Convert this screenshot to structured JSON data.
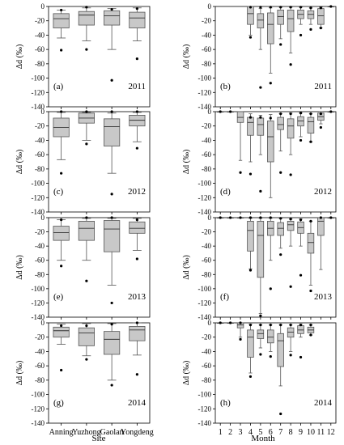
{
  "figure": {
    "x_labels": {
      "left": "Site",
      "right": "Month"
    },
    "y_label": "Δd (‰)",
    "left_categories": [
      "Anning",
      "Yuzhong",
      "Gaolan",
      "Yongdeng"
    ],
    "right_categories": [
      "1",
      "2",
      "3",
      "4",
      "5",
      "6",
      "7",
      "8",
      "9",
      "10",
      "11",
      "12"
    ],
    "y_ticks": [
      "0",
      "-20",
      "-40",
      "-60",
      "-80",
      "-100",
      "-120",
      "-140"
    ]
  },
  "chart_data": [
    {
      "id": "a",
      "type": "boxplot",
      "label": "(a)",
      "year": "2011",
      "xlabel": "Site",
      "ylabel": "Δd (‰)",
      "ylim": [
        -140,
        0
      ],
      "categories": [
        "Anning",
        "Yuzhong",
        "Gaolan",
        "Yongdeng"
      ],
      "boxes": [
        {
          "q1": -30,
          "median": -17,
          "q3": -10,
          "low": -44,
          "high": -5,
          "outliers": [
            -61,
            -5
          ]
        },
        {
          "q1": -26,
          "median": -12,
          "q3": -7,
          "low": -48,
          "high": -2,
          "outliers": [
            -60,
            -1
          ]
        },
        {
          "q1": -26,
          "median": -13,
          "q3": -6,
          "low": -60,
          "high": -3,
          "outliers": [
            -103,
            -4
          ]
        },
        {
          "q1": -30,
          "median": -16,
          "q3": -8,
          "low": -48,
          "high": -2,
          "outliers": [
            -73,
            -3
          ]
        }
      ]
    },
    {
      "id": "b",
      "type": "boxplot",
      "label": "(b)",
      "year": "2011",
      "xlabel": "Month",
      "ylabel": "Δd (‰)",
      "ylim": [
        -140,
        0
      ],
      "categories": [
        "1",
        "2",
        "3",
        "4",
        "5",
        "6",
        "7",
        "8",
        "9",
        "10",
        "11",
        "12"
      ],
      "boxes": [
        null,
        null,
        null,
        {
          "q1": -25,
          "median": -10,
          "q3": 0,
          "low": -40,
          "high": 0,
          "outliers": [
            -43,
            -1
          ]
        },
        {
          "q1": -30,
          "median": -19,
          "q3": -10,
          "low": -60,
          "high": -3,
          "outliers": [
            -113,
            -1
          ]
        },
        {
          "q1": -52,
          "median": -25,
          "q3": -9,
          "low": -93,
          "high": -2,
          "outliers": [
            -107,
            -1
          ]
        },
        {
          "q1": -25,
          "median": -14,
          "q3": -5,
          "low": -45,
          "high": -1,
          "outliers": [
            -53,
            -1
          ]
        },
        {
          "q1": -35,
          "median": -17,
          "q3": -5,
          "low": -65,
          "high": -1,
          "outliers": [
            -81,
            -1
          ]
        },
        {
          "q1": -17,
          "median": -11,
          "q3": -5,
          "low": -25,
          "high": -1,
          "outliers": [
            -40,
            -1
          ]
        },
        {
          "q1": -17,
          "median": -11,
          "q3": -6,
          "low": -25,
          "high": -2,
          "outliers": [
            -32,
            -2
          ]
        },
        {
          "q1": -25,
          "median": -13,
          "q3": -3,
          "low": -30,
          "high": -1,
          "outliers": [
            -30,
            -2
          ]
        },
        {
          "q1": 0,
          "median": 0,
          "q3": 0,
          "low": 0,
          "high": 0,
          "outliers": [
            0
          ]
        }
      ]
    },
    {
      "id": "c",
      "type": "boxplot",
      "label": "(c)",
      "year": "2012",
      "xlabel": "Site",
      "ylabel": "Δd (‰)",
      "ylim": [
        -140,
        0
      ],
      "categories": [
        "Anning",
        "Yuzhong",
        "Gaolan",
        "Yongdeng"
      ],
      "boxes": [
        {
          "q1": -35,
          "median": -22,
          "q3": -9,
          "low": -67,
          "high": -1,
          "outliers": [
            -86,
            0
          ]
        },
        {
          "q1": -16,
          "median": -9,
          "q3": -2,
          "low": -40,
          "high": -1,
          "outliers": [
            -45,
            0
          ]
        },
        {
          "q1": -48,
          "median": -21,
          "q3": -10,
          "low": -86,
          "high": -2,
          "outliers": [
            -115,
            0
          ]
        },
        {
          "q1": -20,
          "median": -12,
          "q3": -5,
          "low": -42,
          "high": -1,
          "outliers": [
            -51,
            0
          ]
        }
      ]
    },
    {
      "id": "d",
      "type": "boxplot",
      "label": "(d)",
      "year": "2012",
      "xlabel": "Month",
      "ylabel": "Δd (‰)",
      "ylim": [
        -140,
        0
      ],
      "categories": [
        "1",
        "2",
        "3",
        "4",
        "5",
        "6",
        "7",
        "8",
        "9",
        "10",
        "11",
        "12"
      ],
      "boxes": [
        {
          "q1": 0,
          "median": 0,
          "q3": 0,
          "low": 0,
          "high": 0,
          "outliers": [
            0
          ]
        },
        {
          "q1": 0,
          "median": 0,
          "q3": 0,
          "low": 0,
          "high": 0,
          "outliers": [
            0
          ]
        },
        {
          "q1": -15,
          "median": -8,
          "q3": 0,
          "low": -68,
          "high": 0,
          "outliers": [
            -85
          ]
        },
        {
          "q1": -33,
          "median": -15,
          "q3": -8,
          "low": -70,
          "high": -3,
          "outliers": [
            -87,
            -8
          ]
        },
        {
          "q1": -33,
          "median": -18,
          "q3": -9,
          "low": -60,
          "high": -5,
          "outliers": [
            -111,
            -8
          ]
        },
        {
          "q1": -70,
          "median": -35,
          "q3": -13,
          "low": -120,
          "high": -4,
          "outliers": [
            -9
          ]
        },
        {
          "q1": -25,
          "median": -18,
          "q3": -8,
          "low": -55,
          "high": -3,
          "outliers": [
            -85,
            -3
          ]
        },
        {
          "q1": -37,
          "median": -20,
          "q3": -10,
          "low": -60,
          "high": -2,
          "outliers": [
            -88,
            -3
          ]
        },
        {
          "q1": -20,
          "median": -13,
          "q3": -7,
          "low": -35,
          "high": -2,
          "outliers": [
            -40,
            -2
          ]
        },
        {
          "q1": -30,
          "median": -14,
          "q3": -8,
          "low": -42,
          "high": -3,
          "outliers": [
            -42,
            -3
          ]
        },
        {
          "q1": -12,
          "median": -7,
          "q3": -2,
          "low": -17,
          "high": 0,
          "outliers": [
            -22,
            -3
          ]
        },
        {
          "q1": 0,
          "median": 0,
          "q3": 0,
          "low": 0,
          "high": 0,
          "outliers": [
            0
          ]
        }
      ]
    },
    {
      "id": "e",
      "type": "boxplot",
      "label": "(e)",
      "year": "2013",
      "xlabel": "Site",
      "ylabel": "Δd (‰)",
      "ylim": [
        -140,
        0
      ],
      "categories": [
        "Anning",
        "Yuzhong",
        "Gaolan",
        "Yongdeng"
      ],
      "boxes": [
        {
          "q1": -32,
          "median": -21,
          "q3": -12,
          "low": -60,
          "high": -3,
          "outliers": [
            -68,
            -3
          ]
        },
        {
          "q1": -32,
          "median": -15,
          "q3": -5,
          "low": -60,
          "high": -1,
          "outliers": [
            -89,
            0
          ]
        },
        {
          "q1": -48,
          "median": -16,
          "q3": -4,
          "low": -95,
          "high": -1,
          "outliers": [
            -120,
            0
          ]
        },
        {
          "q1": -22,
          "median": -15,
          "q3": -6,
          "low": -46,
          "high": -1,
          "outliers": [
            -58,
            -3
          ]
        }
      ]
    },
    {
      "id": "f",
      "type": "boxplot",
      "label": "(f)",
      "year": "2013",
      "xlabel": "Month",
      "ylabel": "Δd (‰)",
      "ylim": [
        -140,
        0
      ],
      "categories": [
        "1",
        "2",
        "3",
        "4",
        "5",
        "6",
        "7",
        "8",
        "9",
        "10",
        "11",
        "12"
      ],
      "boxes": [
        {
          "q1": 0,
          "median": 0,
          "q3": 0,
          "low": 0,
          "high": 0,
          "outliers": [
            0
          ]
        },
        {
          "q1": 0,
          "median": 0,
          "q3": 0,
          "low": 0,
          "high": 0,
          "outliers": [
            0
          ]
        },
        {
          "q1": 0,
          "median": 0,
          "q3": 0,
          "low": 0,
          "high": 0,
          "outliers": [
            0
          ]
        },
        {
          "q1": -47,
          "median": -18,
          "q3": -5,
          "low": -72,
          "high": -1,
          "outliers": [
            -74,
            0
          ]
        },
        {
          "q1": -84,
          "median": -25,
          "q3": -5,
          "low": -135,
          "high": -1,
          "outliers": [
            -138,
            0
          ]
        },
        {
          "q1": -25,
          "median": -15,
          "q3": -5,
          "low": -60,
          "high": -1,
          "outliers": [
            -100,
            0
          ]
        },
        {
          "q1": -25,
          "median": -15,
          "q3": -7,
          "low": -43,
          "high": -1,
          "outliers": [
            -52,
            -1
          ]
        },
        {
          "q1": -18,
          "median": -10,
          "q3": -5,
          "low": -40,
          "high": -2,
          "outliers": [
            -97,
            -2
          ]
        },
        {
          "q1": -22,
          "median": -14,
          "q3": -6,
          "low": -40,
          "high": -2,
          "outliers": [
            -81,
            -3
          ]
        },
        {
          "q1": -50,
          "median": -35,
          "q3": -22,
          "low": -95,
          "high": -5,
          "outliers": [
            -103,
            -5
          ]
        },
        {
          "q1": -25,
          "median": -5,
          "q3": 0,
          "low": -73,
          "high": 0,
          "outliers": [
            0
          ]
        },
        {
          "q1": 0,
          "median": 0,
          "q3": 0,
          "low": 0,
          "high": 0,
          "outliers": [
            0
          ]
        }
      ]
    },
    {
      "id": "g",
      "type": "boxplot",
      "label": "(g)",
      "year": "2014",
      "xlabel": "Site",
      "ylabel": "Δd (‰)",
      "ylim": [
        -140,
        0
      ],
      "categories": [
        "Anning",
        "Yuzhong",
        "Gaolan",
        "Yongdeng"
      ],
      "boxes": [
        {
          "q1": -20,
          "median": -11,
          "q3": -6,
          "low": -30,
          "high": -2,
          "outliers": [
            -66,
            -4
          ]
        },
        {
          "q1": -32,
          "median": -14,
          "q3": -7,
          "low": -46,
          "high": -1,
          "outliers": [
            -51,
            -4
          ]
        },
        {
          "q1": -44,
          "median": -23,
          "q3": -12,
          "low": -80,
          "high": -1,
          "outliers": [
            -87,
            -2
          ]
        },
        {
          "q1": -25,
          "median": -10,
          "q3": -5,
          "low": -45,
          "high": 0,
          "outliers": [
            -72,
            0
          ]
        }
      ]
    },
    {
      "id": "h",
      "type": "boxplot",
      "label": "(h)",
      "year": "2014",
      "xlabel": "Month",
      "ylabel": "Δd (‰)",
      "ylim": [
        -140,
        0
      ],
      "categories": [
        "1",
        "2",
        "3",
        "4",
        "5",
        "6",
        "7",
        "8",
        "9",
        "10",
        "11",
        "12"
      ],
      "boxes": [
        {
          "q1": 0,
          "median": 0,
          "q3": 0,
          "low": 0,
          "high": 0,
          "outliers": [
            0
          ]
        },
        {
          "q1": 0,
          "median": 0,
          "q3": 0,
          "low": 0,
          "high": 0,
          "outliers": [
            0
          ]
        },
        {
          "q1": -7,
          "median": -3,
          "q3": 0,
          "low": -20,
          "high": 0,
          "outliers": [
            -23,
            0
          ]
        },
        {
          "q1": -48,
          "median": -20,
          "q3": -10,
          "low": -70,
          "high": -2,
          "outliers": [
            -75,
            -3
          ]
        },
        {
          "q1": -22,
          "median": -15,
          "q3": -10,
          "low": -35,
          "high": -3,
          "outliers": [
            -44,
            -3
          ]
        },
        {
          "q1": -28,
          "median": -20,
          "q3": -10,
          "low": -40,
          "high": -3,
          "outliers": [
            -47,
            -3
          ]
        },
        {
          "q1": -61,
          "median": -25,
          "q3": -15,
          "low": -88,
          "high": -3,
          "outliers": [
            -127,
            -3
          ]
        },
        {
          "q1": -20,
          "median": -13,
          "q3": -7,
          "low": -40,
          "high": -3,
          "outliers": [
            -45,
            -3
          ]
        },
        {
          "q1": -15,
          "median": -10,
          "q3": -4,
          "low": -20,
          "high": -2,
          "outliers": [
            -48,
            -3
          ]
        },
        {
          "q1": -14,
          "median": -10,
          "q3": -6,
          "low": -17,
          "high": -3,
          "outliers": [
            -17,
            -3
          ]
        },
        null,
        null
      ]
    }
  ]
}
